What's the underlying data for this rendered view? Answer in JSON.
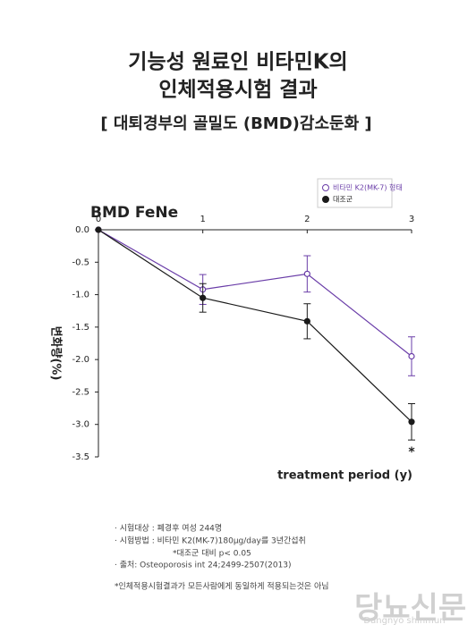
{
  "chart_data": {
    "type": "line",
    "title_lines": [
      "기능성 원료인 비타민K의",
      "인체적용시험 결과"
    ],
    "subtitle": "[ 대퇴경부의 골밀도 (BMD)감소둔화 ]",
    "panel_title": "BMD FeNe",
    "y_label": "변화량(%)",
    "x_label": "treatment period (y)",
    "x": [
      0,
      1,
      2,
      3
    ],
    "xlim": [
      0,
      3
    ],
    "xticks": [
      0,
      1,
      2,
      3
    ],
    "ylim": [
      -3.5,
      0
    ],
    "yticks": [
      {
        "value": 0,
        "label": "0.0"
      },
      -0.5,
      {
        "value": -1,
        "label": "-1.0"
      },
      -1.5,
      {
        "value": -2,
        "label": "-2.0"
      },
      -2.5,
      {
        "value": -3,
        "label": "-3.0"
      },
      -3.5
    ],
    "series": [
      {
        "name": "비타민 K2(MK-7) 형태",
        "color": "#6a3da8",
        "marker": "open",
        "values": [
          0,
          -0.92,
          -0.68,
          -1.95
        ],
        "errors": [
          null,
          0.23,
          0.28,
          0.3
        ]
      },
      {
        "name": "대조군",
        "color": "#1a1a1a",
        "marker": "filled",
        "values": [
          0,
          -1.05,
          -1.41,
          -2.96
        ],
        "errors": [
          null,
          0.22,
          0.27,
          0.28
        ]
      }
    ],
    "annotation": "*",
    "notes": [
      "· 시험대상 : 폐경후 여성 244명",
      "· 시험방법 : 비타민 K2(MK-7)180μg/day를 3년간섭취",
      "*대조군 대비 p< 0.05",
      "· 출처: Osteoporosis int 24;2499-2507(2013)",
      "*인체적용시험결과가 모든사람에게 동일하게 적용되는것은 아님"
    ],
    "watermark": "당뇨신문",
    "watermark_sub": "Dangnyo shinmun"
  }
}
